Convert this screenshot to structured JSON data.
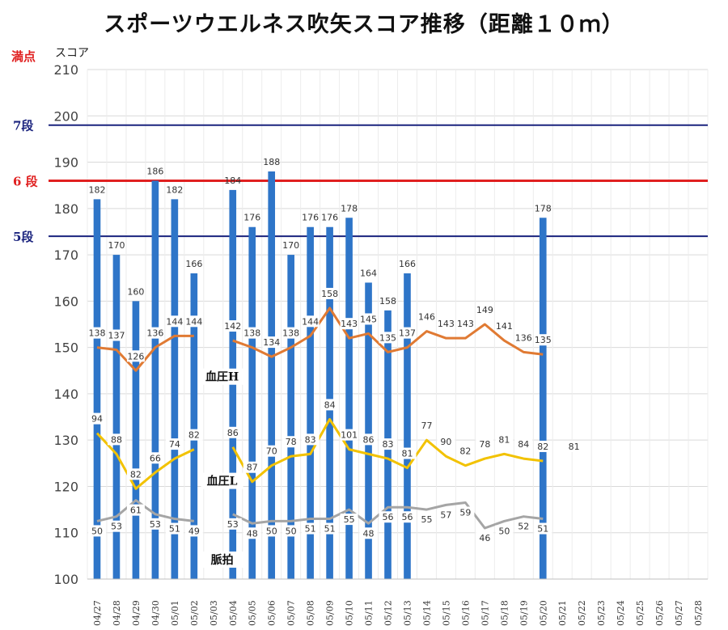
{
  "chart_data": {
    "type": "bar",
    "title": "スポーツウエルネス吹矢スコア推移（距離１０ｍ）",
    "ylabel": "スコア",
    "ylim": [
      100,
      210
    ],
    "yticks": [
      100,
      110,
      120,
      130,
      140,
      150,
      160,
      170,
      180,
      190,
      200,
      210
    ],
    "grid": true,
    "categories": [
      "04/27",
      "04/28",
      "04/29",
      "04/30",
      "05/01",
      "05/02",
      "05/03",
      "05/04",
      "05/05",
      "05/06",
      "05/07",
      "05/08",
      "05/09",
      "05/10",
      "05/11",
      "05/12",
      "05/13",
      "05/14",
      "05/15",
      "05/16",
      "05/17",
      "05/18",
      "05/19",
      "05/20",
      "05/21",
      "05/22",
      "05/23",
      "05/24",
      "05/25",
      "05/26",
      "05/27",
      "05/28"
    ],
    "series": [
      {
        "kind": "bar",
        "color": "#2e75c8",
        "values": [
          182,
          170,
          160,
          186,
          182,
          166,
          null,
          184,
          176,
          188,
          170,
          176,
          176,
          178,
          164,
          158,
          166,
          null,
          null,
          null,
          null,
          null,
          null,
          178,
          null,
          null,
          null,
          null,
          null,
          null,
          null,
          null
        ]
      },
      {
        "kind": "line",
        "name": "血圧H",
        "color": "#e07a33",
        "values": [
          138,
          137,
          126,
          136,
          144,
          144,
          null,
          142,
          138,
          134,
          138,
          144,
          158,
          143,
          145,
          135,
          137,
          146,
          143,
          143,
          149,
          141,
          136,
          135,
          null,
          null,
          null,
          null,
          null,
          null,
          null,
          null
        ],
        "score_axis_values": [
          150,
          149.5,
          145,
          150,
          152.5,
          152.5,
          null,
          151.5,
          150,
          148,
          150,
          152.5,
          158.5,
          152,
          153,
          149,
          150,
          153.5,
          152,
          152,
          155,
          151.5,
          149,
          148.5,
          null,
          null,
          null,
          null,
          null,
          null,
          null,
          null
        ]
      },
      {
        "kind": "line",
        "name": "血圧L",
        "color": "#f2c200",
        "values": [
          94,
          88,
          82,
          66,
          74,
          82,
          null,
          86,
          87,
          70,
          78,
          83,
          84,
          101,
          86,
          83,
          81,
          77,
          90,
          82,
          78,
          81,
          84,
          82,
          81,
          null,
          null,
          null,
          null,
          null,
          null,
          null
        ],
        "score_axis_values": [
          131.5,
          127,
          119.5,
          123,
          126,
          128,
          null,
          128.5,
          121,
          124.5,
          126.5,
          127,
          134.5,
          128,
          127,
          126,
          124,
          130,
          126.5,
          124.5,
          126,
          127,
          126,
          125.5,
          null,
          null,
          null,
          null,
          null,
          null,
          null,
          null
        ]
      },
      {
        "kind": "line",
        "name": "脈拍",
        "color": "#a5a5a5",
        "values": [
          50,
          53,
          61,
          53,
          51,
          49,
          null,
          53,
          48,
          50,
          50,
          51,
          51,
          55,
          48,
          56,
          56,
          55,
          57,
          59,
          46,
          50,
          52,
          51,
          null,
          null,
          null,
          null,
          null,
          null,
          null,
          null
        ],
        "score_axis_values": [
          112.5,
          113.5,
          117,
          114,
          113,
          112.5,
          null,
          114,
          112,
          112.5,
          112.5,
          113,
          113,
          115,
          112,
          115.5,
          115.5,
          115,
          116,
          116.5,
          111,
          112.5,
          113.5,
          113,
          null,
          null,
          null,
          null,
          null,
          null,
          null,
          null
        ]
      }
    ],
    "reference_lines": [
      {
        "label": "7段",
        "value": 198,
        "color": "#1a237e"
      },
      {
        "label": "6 段",
        "value": 186,
        "color": "#e02020"
      },
      {
        "label": "5段",
        "value": 174,
        "color": "#1a237e"
      }
    ],
    "max_label": {
      "text": "満点",
      "color": "#e02020"
    }
  }
}
